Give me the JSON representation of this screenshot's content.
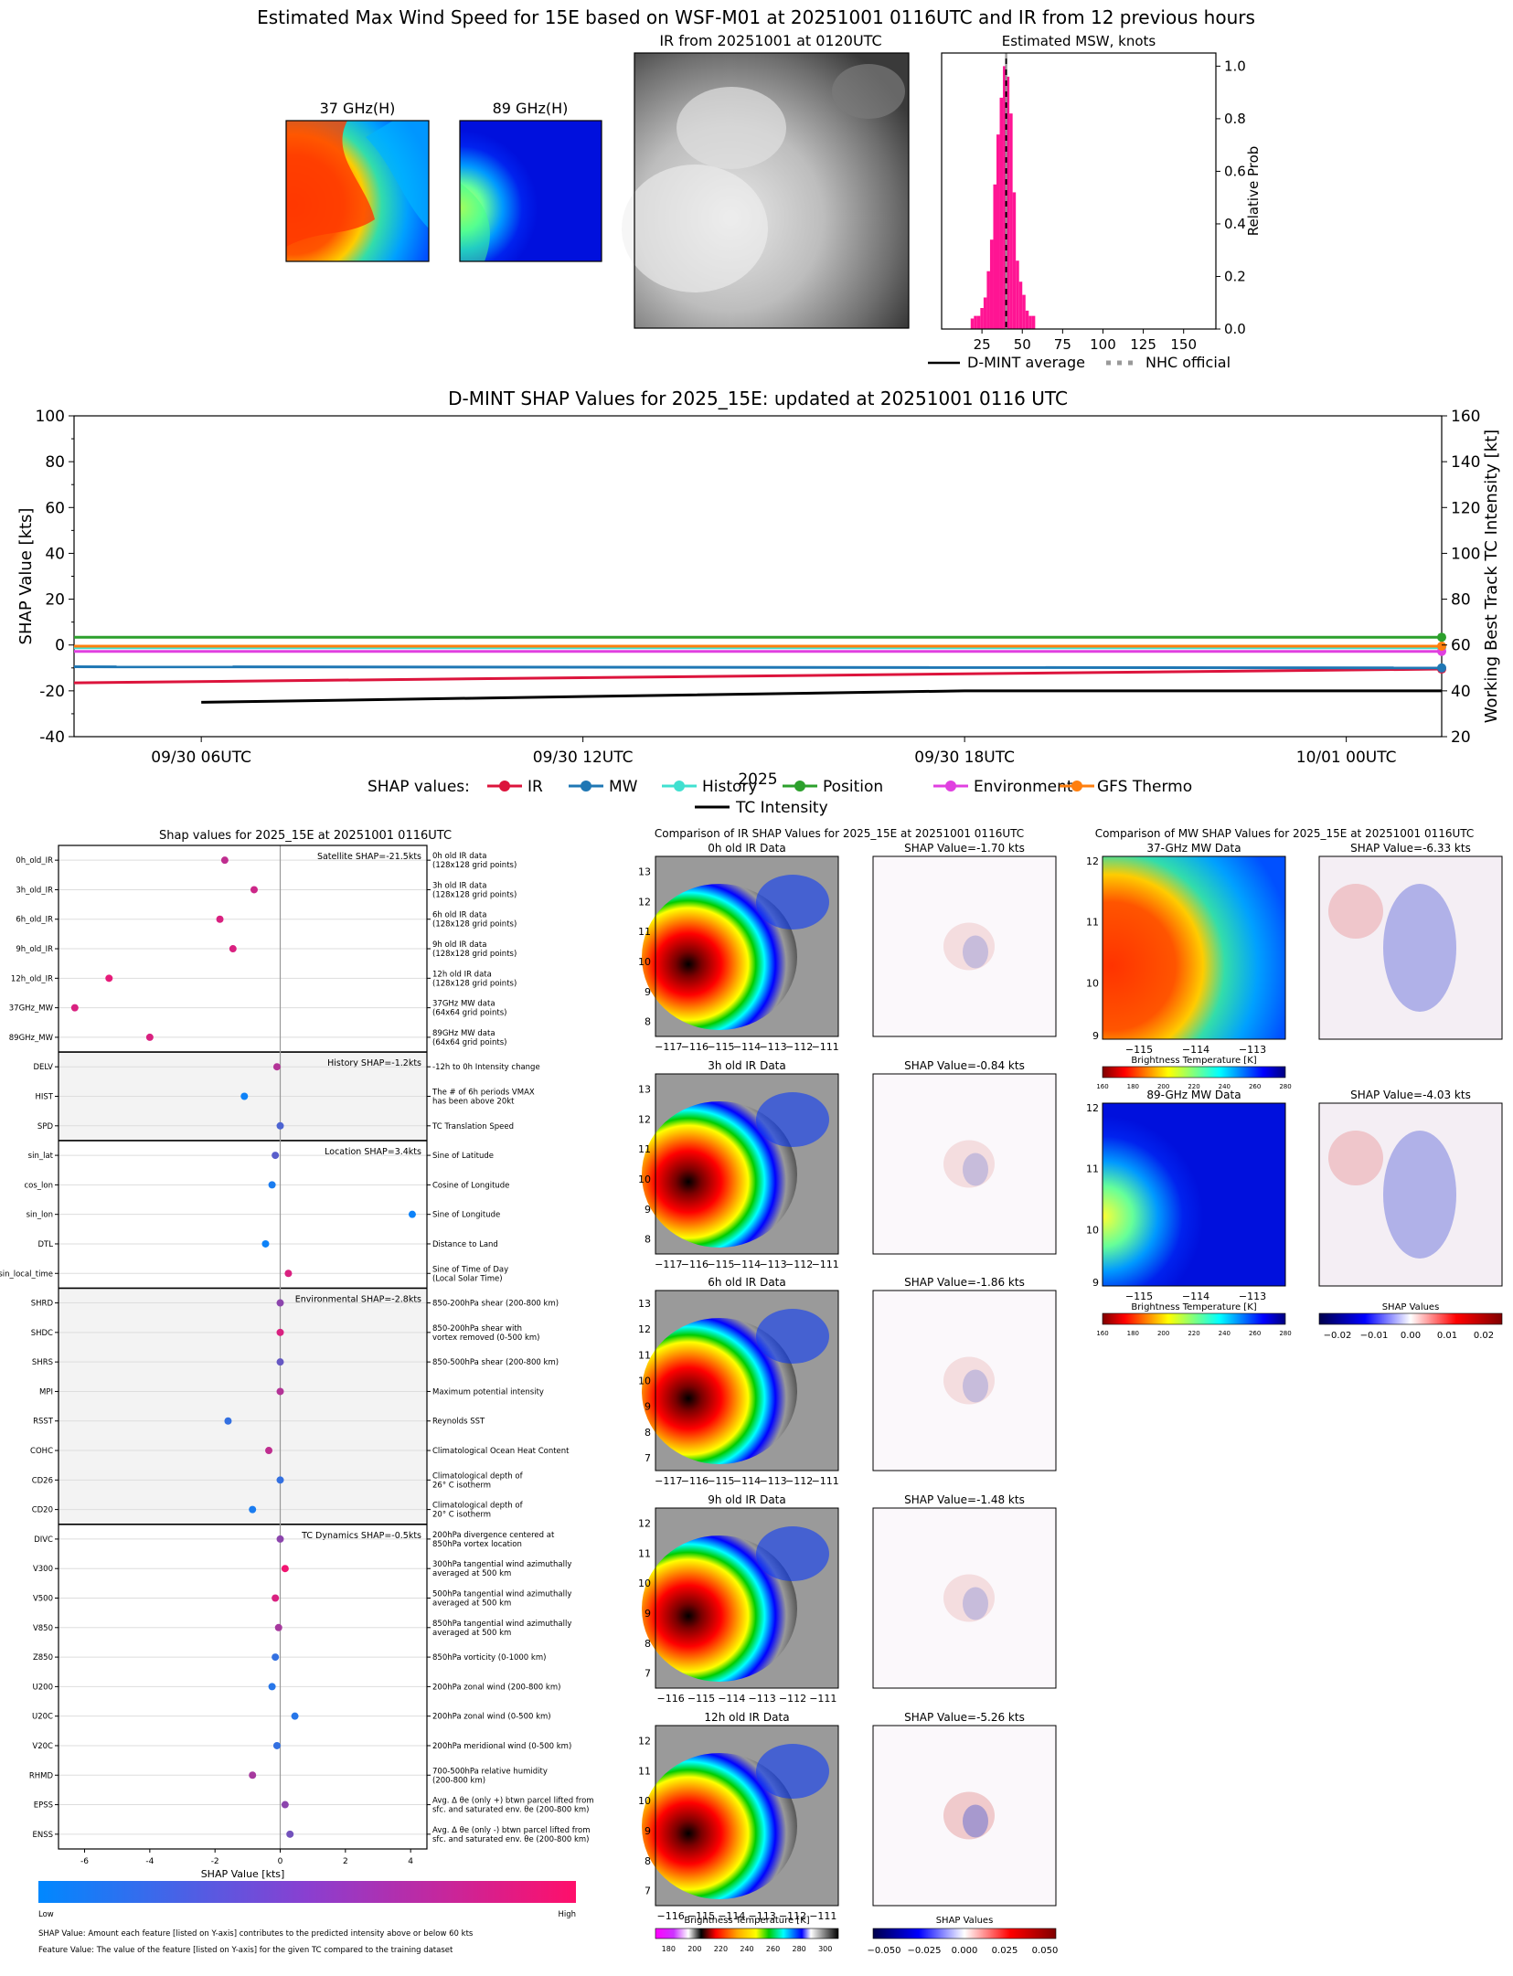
{
  "page": {
    "main_title": "Estimated Max Wind Speed for 15E based on WSF-M01 at 20251001 0116UTC and IR from 12 previous hours"
  },
  "top_panels": {
    "mw37_title": "37 GHz(H)",
    "mw89_title": "89 GHz(H)",
    "ir_title": "IR from 20251001 at 0120UTC"
  },
  "colors": {
    "ir": "#dc143c",
    "mw": "#1f77b4",
    "history": "#40e0d0",
    "position": "#2ca02c",
    "environment": "#e040e0",
    "gfs_thermo": "#ff7f0e",
    "tc_intensity": "#000000",
    "hist_bar": "#ff1493",
    "shap_low": "#0088ff",
    "shap_high": "#ff0f6a"
  },
  "chart_data": [
    {
      "id": "msw_histogram",
      "type": "bar",
      "title": "Estimated MSW, knots",
      "ylabel": "Relative Prob",
      "xlim": [
        0,
        170
      ],
      "ylim": [
        0,
        1.05
      ],
      "xticks": [
        25,
        50,
        75,
        100,
        125,
        150
      ],
      "yticks": [
        0.0,
        0.2,
        0.4,
        0.6,
        0.8,
        1.0
      ],
      "bin_width": 2,
      "bins": [
        {
          "x": 19,
          "y": 0.04
        },
        {
          "x": 21,
          "y": 0.05
        },
        {
          "x": 23,
          "y": 0.05
        },
        {
          "x": 25,
          "y": 0.08
        },
        {
          "x": 27,
          "y": 0.12
        },
        {
          "x": 29,
          "y": 0.22
        },
        {
          "x": 31,
          "y": 0.34
        },
        {
          "x": 33,
          "y": 0.55
        },
        {
          "x": 35,
          "y": 0.74
        },
        {
          "x": 37,
          "y": 0.88
        },
        {
          "x": 39,
          "y": 1.0
        },
        {
          "x": 41,
          "y": 0.96
        },
        {
          "x": 43,
          "y": 0.82
        },
        {
          "x": 45,
          "y": 0.52
        },
        {
          "x": 47,
          "y": 0.26
        },
        {
          "x": 49,
          "y": 0.18
        },
        {
          "x": 51,
          "y": 0.13
        },
        {
          "x": 53,
          "y": 0.07
        },
        {
          "x": 55,
          "y": 0.05
        },
        {
          "x": 57,
          "y": 0.05
        }
      ],
      "dmint_average": 40,
      "nhc_official": 40,
      "legend": [
        "D-MINT average",
        "NHC official"
      ]
    },
    {
      "id": "shap_timeseries",
      "type": "line",
      "title": "D-MINT SHAP Values for 2025_15E: updated at 20251001 0116 UTC",
      "xlabel": "2025",
      "ylabel": "SHAP Value [kts]",
      "y2label": "Working Best Track TC Intensity [kt]",
      "ylim": [
        -40,
        100
      ],
      "y2lim": [
        20,
        160
      ],
      "yticks": [
        -40,
        -20,
        0,
        20,
        40,
        60,
        80,
        100
      ],
      "y2ticks": [
        20,
        40,
        60,
        80,
        100,
        120,
        140,
        160
      ],
      "xlim_hours": [
        -2,
        19.5
      ],
      "xticks": [
        {
          "h": 0,
          "label": "09/30 06UTC"
        },
        {
          "h": 6,
          "label": "09/30 12UTC"
        },
        {
          "h": 12,
          "label": "09/30 18UTC"
        },
        {
          "h": 18,
          "label": "10/01 00UTC"
        }
      ],
      "legend_label": "SHAP values:",
      "series": [
        {
          "name": "IR",
          "key": "ir",
          "h": [
            -2,
            19.5
          ],
          "y": [
            -16.5,
            -10.5
          ]
        },
        {
          "name": "MW",
          "key": "mw",
          "h": [
            -2,
            19.5
          ],
          "y": [
            -9.5,
            -10
          ]
        },
        {
          "name": "History",
          "key": "history",
          "h": [
            -2,
            19.5
          ],
          "y": [
            -1.2,
            -1.2
          ]
        },
        {
          "name": "Position",
          "key": "position",
          "h": [
            -2,
            19.5
          ],
          "y": [
            3.4,
            3.4
          ]
        },
        {
          "name": "Environment",
          "key": "environment",
          "h": [
            -2,
            19.5
          ],
          "y": [
            -2.8,
            -2.8
          ]
        },
        {
          "name": "GFS Thermo",
          "key": "gfs_thermo",
          "h": [
            -2,
            19.5
          ],
          "y": [
            -0.5,
            -0.5
          ]
        }
      ],
      "tc_intensity": {
        "name": "TC Intensity",
        "h": [
          0,
          12,
          19.5
        ],
        "kt": [
          35,
          40,
          40
        ]
      }
    },
    {
      "id": "shap_features",
      "type": "scatter",
      "title": "Shap values for 2025_15E at 20251001 0116UTC",
      "xlabel": "SHAP Value [kts]",
      "xlim": [
        -6.8,
        4.5
      ],
      "xticks": [
        -6,
        -4,
        -2,
        0,
        2,
        4
      ],
      "colorbar": {
        "low": "Low",
        "high": "High"
      },
      "footnotes": [
        "SHAP Value: Amount each feature [listed on Y-axis] contributes to the predicted intensity above or below 60 kts",
        "Feature Value: The value of the feature [listed on Y-axis] for the given TC compared to the training dataset"
      ],
      "groups": [
        {
          "label": "Satellite SHAP=-21.5kts",
          "shaded": false,
          "features": [
            {
              "name": "0h_old_IR",
              "desc": [
                "0h old IR data",
                "(128x128 grid points)"
              ],
              "shap": -1.7,
              "fv": 0.75
            },
            {
              "name": "3h_old_IR",
              "desc": [
                "3h old IR data",
                "(128x128 grid points)"
              ],
              "shap": -0.8,
              "fv": 0.8
            },
            {
              "name": "6h_old_IR",
              "desc": [
                "6h old IR data",
                "(128x128 grid points)"
              ],
              "shap": -1.85,
              "fv": 0.85
            },
            {
              "name": "9h_old_IR",
              "desc": [
                "9h old IR data",
                "(128x128 grid points)"
              ],
              "shap": -1.45,
              "fv": 0.85
            },
            {
              "name": "12h_old_IR",
              "desc": [
                "12h old IR data",
                "(128x128 grid points)"
              ],
              "shap": -5.25,
              "fv": 0.9
            },
            {
              "name": "37GHz_MW",
              "desc": [
                "37GHz MW data",
                "(64x64 grid points)"
              ],
              "shap": -6.3,
              "fv": 0.85
            },
            {
              "name": "89GHz_MW",
              "desc": [
                "89GHz MW data",
                "(64x64 grid points)"
              ],
              "shap": -4.0,
              "fv": 0.85
            }
          ]
        },
        {
          "label": "History SHAP=-1.2kts",
          "shaded": true,
          "features": [
            {
              "name": "DELV",
              "desc": [
                "-12h to 0h Intensity change"
              ],
              "shap": -0.1,
              "fv": 0.7
            },
            {
              "name": "HIST",
              "desc": [
                "The # of 6h periods VMAX",
                "has been above 20kt"
              ],
              "shap": -1.1,
              "fv": 0.05
            },
            {
              "name": "SPD",
              "desc": [
                "TC Translation Speed"
              ],
              "shap": 0.0,
              "fv": 0.3
            }
          ]
        },
        {
          "label": "Location SHAP=3.4kts",
          "shaded": false,
          "features": [
            {
              "name": "sin_lat",
              "desc": [
                "Sine of Latitude"
              ],
              "shap": -0.15,
              "fv": 0.35
            },
            {
              "name": "cos_lon",
              "desc": [
                "Cosine of Longitude"
              ],
              "shap": -0.25,
              "fv": 0.1
            },
            {
              "name": "sin_lon",
              "desc": [
                "Sine of Longitude"
              ],
              "shap": 4.05,
              "fv": 0.05
            },
            {
              "name": "DTL",
              "desc": [
                "Distance to Land"
              ],
              "shap": -0.45,
              "fv": 0.05
            },
            {
              "name": "sin_local_time",
              "desc": [
                "Sine of Time of Day",
                "(Local Solar Time)"
              ],
              "shap": 0.25,
              "fv": 0.85
            }
          ]
        },
        {
          "label": "Environmental SHAP=-2.8kts",
          "shaded": true,
          "features": [
            {
              "name": "SHRD",
              "desc": [
                "850-200hPa shear (200-800 km)"
              ],
              "shap": 0.0,
              "fv": 0.55
            },
            {
              "name": "SHDC",
              "desc": [
                "850-200hPa shear with",
                "vortex removed (0-500 km)"
              ],
              "shap": 0.0,
              "fv": 0.85
            },
            {
              "name": "SHRS",
              "desc": [
                "850-500hPa shear (200-800 km)"
              ],
              "shap": 0.0,
              "fv": 0.4
            },
            {
              "name": "MPI",
              "desc": [
                "Maximum potential intensity"
              ],
              "shap": 0.0,
              "fv": 0.7
            },
            {
              "name": "RSST",
              "desc": [
                "Reynolds SST"
              ],
              "shap": -1.6,
              "fv": 0.2
            },
            {
              "name": "COHC",
              "desc": [
                "Climatological Ocean Heat Content"
              ],
              "shap": -0.35,
              "fv": 0.75
            },
            {
              "name": "CD26",
              "desc": [
                "Climatological depth of",
                "26° C isotherm"
              ],
              "shap": 0.0,
              "fv": 0.2
            },
            {
              "name": "CD20",
              "desc": [
                "Climatological depth of",
                "20° C isotherm"
              ],
              "shap": -0.85,
              "fv": 0.1
            }
          ]
        },
        {
          "label": "TC Dynamics SHAP=-0.5kts",
          "shaded": false,
          "features": [
            {
              "name": "DIVC",
              "desc": [
                "200hPa divergence centered at",
                "850hPa vortex location"
              ],
              "shap": 0.0,
              "fv": 0.55
            },
            {
              "name": "V300",
              "desc": [
                "300hPa tangential wind azimuthally",
                "averaged at 500 km"
              ],
              "shap": 0.15,
              "fv": 0.95
            },
            {
              "name": "V500",
              "desc": [
                "500hPa tangential wind azimuthally",
                "averaged at 500 km"
              ],
              "shap": -0.15,
              "fv": 0.85
            },
            {
              "name": "V850",
              "desc": [
                "850hPa tangential wind azimuthally",
                "averaged at 500 km"
              ],
              "shap": -0.05,
              "fv": 0.65
            },
            {
              "name": "Z850",
              "desc": [
                "850hPa vorticity (0-1000 km)"
              ],
              "shap": -0.15,
              "fv": 0.2
            },
            {
              "name": "U200",
              "desc": [
                "200hPa zonal wind (200-800 km)"
              ],
              "shap": -0.25,
              "fv": 0.15
            },
            {
              "name": "U20C",
              "desc": [
                "200hPa zonal wind (0-500 km)"
              ],
              "shap": 0.45,
              "fv": 0.15
            },
            {
              "name": "V20C",
              "desc": [
                "200hPa meridional wind (0-500 km)"
              ],
              "shap": -0.1,
              "fv": 0.2
            },
            {
              "name": "RHMD",
              "desc": [
                "700-500hPa relative humidity",
                "(200-800 km)"
              ],
              "shap": -0.85,
              "fv": 0.65
            },
            {
              "name": "EPSS",
              "desc": [
                "Avg. Δ θe (only +) btwn parcel lifted from",
                "sfc. and saturated env. θe (200-800 km)"
              ],
              "shap": 0.15,
              "fv": 0.55
            },
            {
              "name": "ENSS",
              "desc": [
                "Avg. Δ θe (only -) btwn parcel lifted from",
                "sfc. and saturated env. θe (200-800 km)"
              ],
              "shap": 0.3,
              "fv": 0.45
            }
          ]
        }
      ]
    }
  ],
  "ir_comparison": {
    "title": "Comparison of IR SHAP Values for 2025_15E at 20251001 0116UTC",
    "panels": [
      {
        "label": "0h old IR Data",
        "shap_label": "SHAP Value=-1.70 kts",
        "xticks": [
          "−117",
          "−116",
          "−115",
          "−114",
          "−113",
          "−112",
          "−111"
        ],
        "yticks": [
          "13",
          "12",
          "11",
          "10",
          "9",
          "8"
        ]
      },
      {
        "label": "3h old IR Data",
        "shap_label": "SHAP Value=-0.84 kts",
        "xticks": [
          "−117",
          "−116",
          "−115",
          "−114",
          "−113",
          "−112",
          "−111"
        ],
        "yticks": [
          "13",
          "12",
          "11",
          "10",
          "9",
          "8"
        ]
      },
      {
        "label": "6h old IR Data",
        "shap_label": "SHAP Value=-1.86 kts",
        "xticks": [
          "−117",
          "−116",
          "−115",
          "−114",
          "−113",
          "−112",
          "−111"
        ],
        "yticks": [
          "13",
          "12",
          "11",
          "10",
          "9",
          "8",
          "7"
        ]
      },
      {
        "label": "9h old IR Data",
        "shap_label": "SHAP Value=-1.48 kts",
        "xticks": [
          "−116",
          "−115",
          "−114",
          "−113",
          "−112",
          "−111"
        ],
        "yticks": [
          "12",
          "11",
          "10",
          "9",
          "8",
          "7"
        ]
      },
      {
        "label": "12h old IR Data",
        "shap_label": "SHAP Value=-5.26 kts",
        "xticks": [
          "−116",
          "−115",
          "−114",
          "−113",
          "−112",
          "−111"
        ],
        "yticks": [
          "12",
          "11",
          "10",
          "9",
          "8",
          "7"
        ]
      }
    ],
    "bt_colorbar_label": "Brightness Temperature [K]",
    "bt_ticks": [
      "180",
      "200",
      "220",
      "240",
      "260",
      "280",
      "300"
    ],
    "shap_colorbar_label": "SHAP Values",
    "shap_ticks": [
      "−0.050",
      "−0.025",
      "0.000",
      "0.025",
      "0.050"
    ]
  },
  "mw_comparison": {
    "title": "Comparison of MW SHAP Values for 2025_15E at 20251001 0116UTC",
    "panels": [
      {
        "label": "37-GHz MW Data",
        "shap_label": "SHAP Value=-6.33 kts",
        "xticks": [
          "−115",
          "−114",
          "−113"
        ],
        "yticks": [
          "12",
          "11",
          "10",
          "9"
        ]
      },
      {
        "label": "89-GHz MW Data",
        "shap_label": "SHAP Value=-4.03 kts",
        "xticks": [
          "−115",
          "−114",
          "−113"
        ],
        "yticks": [
          "12",
          "11",
          "10",
          "9"
        ]
      }
    ],
    "bt_colorbar_label": "Brightness Temperature [K]",
    "bt_ticks": [
      "160",
      "180",
      "200",
      "220",
      "240",
      "260",
      "280"
    ],
    "shap_colorbar_label": "SHAP Values",
    "shap_ticks": [
      "−0.02",
      "−0.01",
      "0.00",
      "0.01",
      "0.02"
    ]
  }
}
